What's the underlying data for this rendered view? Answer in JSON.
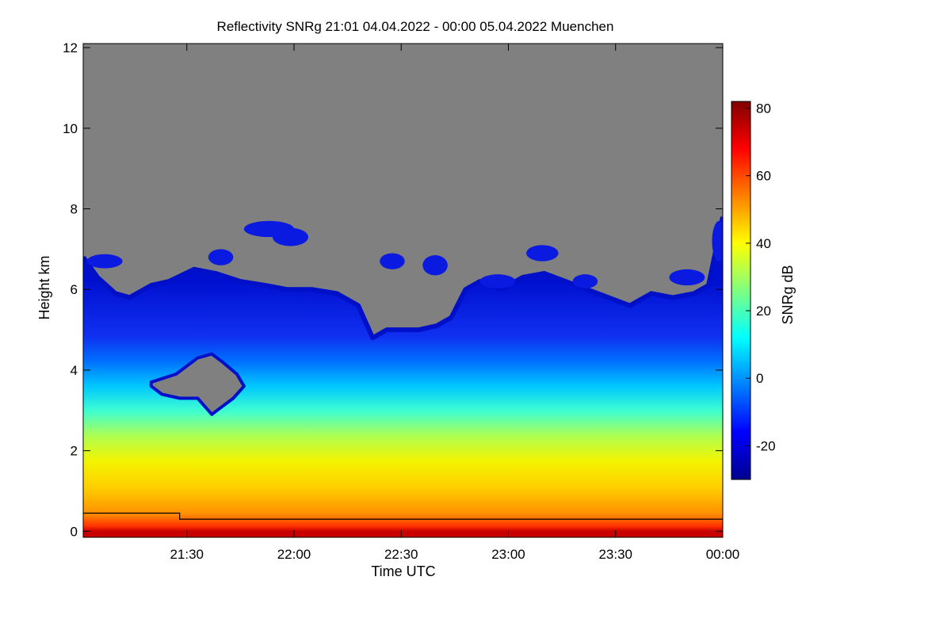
{
  "chart_data": {
    "type": "heatmap",
    "title": "Reflectivity SNRg   21:01 04.04.2022 - 00:00 05.04.2022 Muenchen",
    "xlabel": "Time UTC",
    "ylabel": "Height km",
    "colorbar_label": "SNRg dB",
    "x_ticks": [
      {
        "label": "21:30",
        "minutes_after_2100": 30
      },
      {
        "label": "22:00",
        "minutes_after_2100": 60
      },
      {
        "label": "22:30",
        "minutes_after_2100": 90
      },
      {
        "label": "23:00",
        "minutes_after_2100": 120
      },
      {
        "label": "23:30",
        "minutes_after_2100": 150
      },
      {
        "label": "00:00",
        "minutes_after_2100": 180
      }
    ],
    "xlim_minutes_after_2100": [
      1,
      180
    ],
    "y_ticks": [
      0,
      2,
      4,
      6,
      8,
      10,
      12
    ],
    "ylim": [
      -0.15,
      12.1
    ],
    "colorbar_ticks": [
      -20,
      0,
      20,
      40,
      60,
      80
    ],
    "colorbar_range": [
      -30,
      82
    ],
    "colormap": [
      "#00008f",
      "#0000ff",
      "#0080ff",
      "#00ffff",
      "#80ff80",
      "#ffff00",
      "#ff8000",
      "#ff0000",
      "#800000"
    ],
    "no_signal_color": "#808080",
    "echo_top_profile": {
      "time_min": [
        1,
        5,
        10,
        14,
        20,
        25,
        32,
        38,
        45,
        52,
        58,
        65,
        72,
        78,
        82,
        86,
        90,
        95,
        100,
        104,
        108,
        112,
        118,
        124,
        130,
        136,
        142,
        148,
        154,
        160,
        166,
        172,
        176,
        180
      ],
      "top_km": [
        6.8,
        6.3,
        5.9,
        5.8,
        6.1,
        6.2,
        6.5,
        6.4,
        6.2,
        6.1,
        6.0,
        6.0,
        5.9,
        5.6,
        4.8,
        5.0,
        5.0,
        5.0,
        5.1,
        5.3,
        6.0,
        6.2,
        6.0,
        6.3,
        6.4,
        6.2,
        6.0,
        5.8,
        5.6,
        5.9,
        5.8,
        5.9,
        6.1,
        7.8
      ]
    },
    "gap_region": {
      "time_min": [
        20,
        27,
        33,
        37,
        40,
        44,
        46,
        43,
        40,
        37,
        33,
        28,
        23,
        20
      ],
      "height_km": [
        3.7,
        3.9,
        4.3,
        4.4,
        4.2,
        3.9,
        3.6,
        3.3,
        3.1,
        2.9,
        3.3,
        3.3,
        3.4,
        3.6
      ]
    },
    "upper_echo_patches": [
      {
        "time_min": 2,
        "height_km": 6.7,
        "dt": 10,
        "dh": 0.35
      },
      {
        "time_min": 36,
        "height_km": 6.8,
        "dt": 7,
        "dh": 0.4
      },
      {
        "time_min": 46,
        "height_km": 7.5,
        "dt": 14,
        "dh": 0.4
      },
      {
        "time_min": 54,
        "height_km": 7.3,
        "dt": 10,
        "dh": 0.45
      },
      {
        "time_min": 84,
        "height_km": 6.7,
        "dt": 7,
        "dh": 0.4
      },
      {
        "time_min": 96,
        "height_km": 6.6,
        "dt": 7,
        "dh": 0.5
      },
      {
        "time_min": 112,
        "height_km": 6.2,
        "dt": 10,
        "dh": 0.35
      },
      {
        "time_min": 125,
        "height_km": 6.9,
        "dt": 9,
        "dh": 0.4
      },
      {
        "time_min": 138,
        "height_km": 6.2,
        "dt": 7,
        "dh": 0.35
      },
      {
        "time_min": 165,
        "height_km": 6.3,
        "dt": 10,
        "dh": 0.4
      },
      {
        "time_min": 177,
        "height_km": 7.2,
        "dt": 4,
        "dh": 1.0
      }
    ],
    "overlay_line": {
      "time_min": [
        1,
        28,
        28,
        180
      ],
      "height_km": [
        0.45,
        0.45,
        0.3,
        0.3
      ],
      "color": "#000000"
    },
    "grid": false,
    "colorbar_position": "right"
  }
}
